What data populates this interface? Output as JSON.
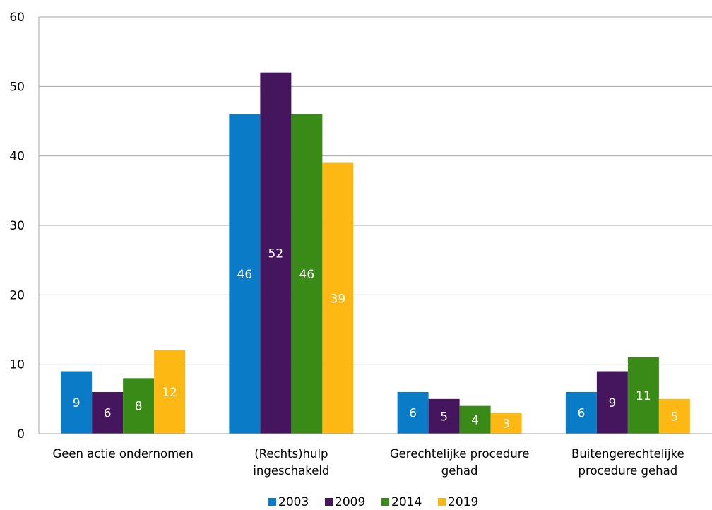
{
  "chart_data": {
    "type": "bar",
    "title": "",
    "xlabel": "",
    "ylabel": "",
    "ylim": [
      0,
      60
    ],
    "yticks": [
      0,
      10,
      20,
      30,
      40,
      50,
      60
    ],
    "grid": true,
    "legend_position": "bottom",
    "categories": [
      [
        "Geen actie ondernomen"
      ],
      [
        "(Rechts)hulp",
        "ingeschakeld"
      ],
      [
        "Gerechtelijke procedure",
        "gehad"
      ],
      [
        "Buitengerechtelijke",
        "procedure gehad"
      ]
    ],
    "series": [
      {
        "name": "2003",
        "color": "#0a7bc6",
        "values": [
          9,
          46,
          6,
          6
        ],
        "label_color": "#ffffff"
      },
      {
        "name": "2009",
        "color": "#45155e",
        "values": [
          6,
          52,
          5,
          9
        ],
        "label_color": "#ffffff"
      },
      {
        "name": "2014",
        "color": "#3a8a17",
        "values": [
          8,
          46,
          4,
          11
        ],
        "label_color": "#ffffff"
      },
      {
        "name": "2019",
        "color": "#fdb813",
        "values": [
          12,
          39,
          3,
          5
        ],
        "label_color": "#ffffff"
      }
    ],
    "data_labels": [
      [
        "9",
        "46",
        "6",
        "6"
      ],
      [
        "6",
        "52",
        "5",
        "9"
      ],
      [
        "8",
        "46",
        "4",
        "11"
      ],
      [
        "12",
        "39",
        "3",
        "5"
      ]
    ],
    "outside_label_color": "#000000"
  }
}
